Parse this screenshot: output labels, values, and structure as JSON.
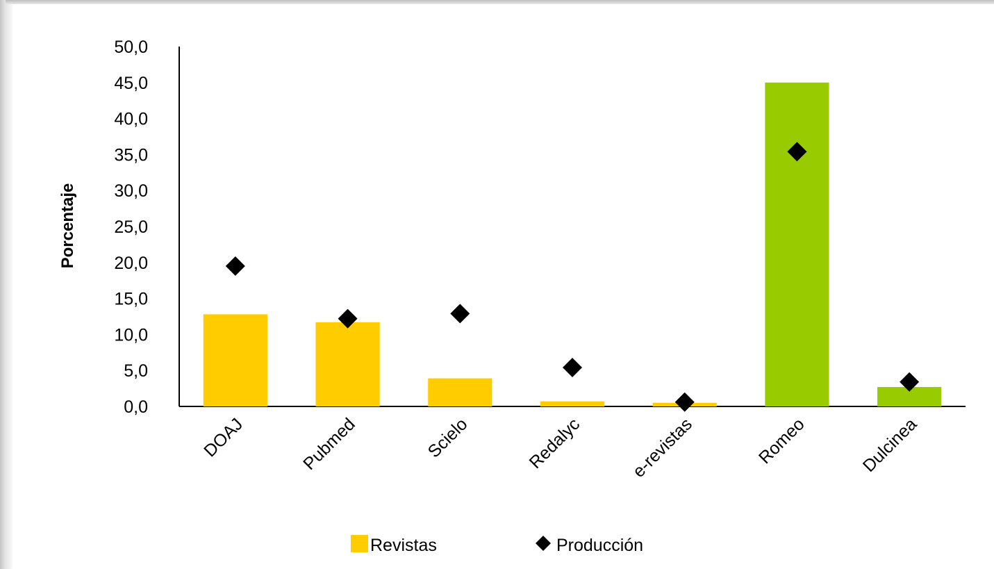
{
  "chart_data": {
    "type": "bar",
    "ylabel": "Porcentaje",
    "xlabel": "",
    "title": "",
    "ylim": [
      0,
      50
    ],
    "y_ticks": [
      "0,0",
      "5,0",
      "10,0",
      "15,0",
      "20,0",
      "25,0",
      "30,0",
      "35,0",
      "40,0",
      "45,0",
      "50,0"
    ],
    "y_tick_values": [
      0,
      5,
      10,
      15,
      20,
      25,
      30,
      35,
      40,
      45,
      50
    ],
    "categories": [
      "DOAJ",
      "Pubmed",
      "Scielo",
      "Redalyc",
      "e-revistas",
      "Romeo",
      "Dulcinea"
    ],
    "series": [
      {
        "name": "Revistas",
        "mark": "bar",
        "values": [
          12.8,
          11.7,
          3.9,
          0.7,
          0.5,
          45.0,
          2.7
        ],
        "colors": [
          "#FFCC00",
          "#FFCC00",
          "#FFCC00",
          "#FFCC00",
          "#FFCC00",
          "#99CC00",
          "#99CC00"
        ]
      },
      {
        "name": "Producción",
        "mark": "diamond",
        "values": [
          19.5,
          12.2,
          12.9,
          5.4,
          0.6,
          35.4,
          3.4
        ],
        "color": "#000000"
      }
    ],
    "grid": false,
    "legend_position": "bottom"
  }
}
